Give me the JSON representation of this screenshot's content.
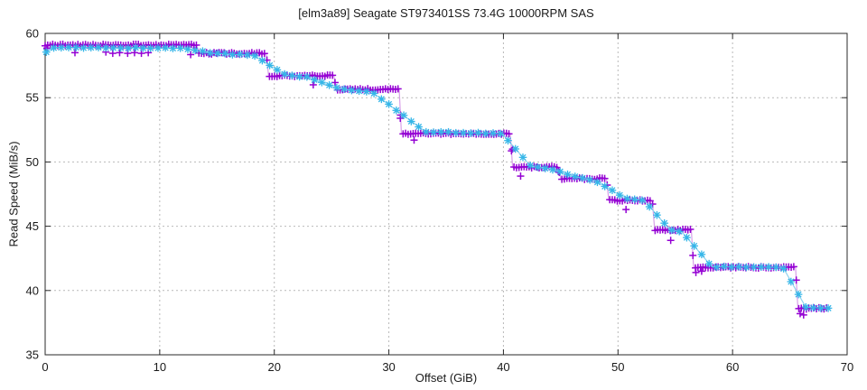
{
  "chart_data": {
    "type": "line",
    "title": "[elm3a89] Seagate ST973401SS 73.4G 10000RPM SAS",
    "xlabel": "Offset (GiB)",
    "ylabel": "Read Speed (MiB/s)",
    "xlim": [
      0,
      70
    ],
    "ylim": [
      35,
      60
    ],
    "x_ticks": [
      0,
      10,
      20,
      30,
      40,
      50,
      60,
      70
    ],
    "y_ticks": [
      35,
      40,
      45,
      50,
      55,
      60
    ],
    "grid": true,
    "legend": "none",
    "colors": {
      "grid": "#b9b9b9",
      "border": "#2a2a2a",
      "text": "#1a1a1a",
      "series1_marker": "#9400d3",
      "series1_line": "#d8a0e8",
      "series2_marker": "#35b6e8",
      "series2_line": "#8fd2ee"
    },
    "series": [
      {
        "name": "stepped-run-purple-plus",
        "marker": "plus",
        "marker_step_gib": 0.22,
        "breakpoints": [
          [
            0,
            59.1
          ],
          [
            13.2,
            59.1
          ],
          [
            13.4,
            58.45
          ],
          [
            19.3,
            58.45
          ],
          [
            19.5,
            56.7
          ],
          [
            25.2,
            56.7
          ],
          [
            25.4,
            55.65
          ],
          [
            30.9,
            55.65
          ],
          [
            31.1,
            52.2
          ],
          [
            40.6,
            52.2
          ],
          [
            40.8,
            49.6
          ],
          [
            44.8,
            49.6
          ],
          [
            45.0,
            48.7
          ],
          [
            49.0,
            48.7
          ],
          [
            49.2,
            47.0
          ],
          [
            53.0,
            47.0
          ],
          [
            53.2,
            44.7
          ],
          [
            56.4,
            44.7
          ],
          [
            56.6,
            41.8
          ],
          [
            65.5,
            41.8
          ],
          [
            65.7,
            38.6
          ],
          [
            68.4,
            38.6
          ]
        ],
        "outliers": [
          [
            0.15,
            58.85
          ],
          [
            2.6,
            58.5
          ],
          [
            5.3,
            58.55
          ],
          [
            5.9,
            58.45
          ],
          [
            6.5,
            58.5
          ],
          [
            7.2,
            58.45
          ],
          [
            7.8,
            58.5
          ],
          [
            8.4,
            58.45
          ],
          [
            9.0,
            58.5
          ],
          [
            12.7,
            58.35
          ],
          [
            23.4,
            56.0
          ],
          [
            31.0,
            53.4
          ],
          [
            32.2,
            51.7
          ],
          [
            40.8,
            51.0
          ],
          [
            41.5,
            48.9
          ],
          [
            44.8,
            49.25
          ],
          [
            50.7,
            46.3
          ],
          [
            54.6,
            43.9
          ],
          [
            56.8,
            41.4
          ],
          [
            57.3,
            41.5
          ],
          [
            65.9,
            38.2
          ],
          [
            66.2,
            38.1
          ]
        ]
      },
      {
        "name": "smoothed-run-cyan-asterisk",
        "marker": "asterisk",
        "marker_step_gib": 0.65,
        "breakpoints": [
          [
            0.1,
            58.55
          ],
          [
            0.8,
            58.9
          ],
          [
            12.2,
            58.85
          ],
          [
            14.6,
            58.45
          ],
          [
            18.2,
            58.3
          ],
          [
            21.0,
            56.75
          ],
          [
            22.8,
            56.6
          ],
          [
            25.6,
            55.7
          ],
          [
            28.5,
            55.45
          ],
          [
            33.2,
            52.35
          ],
          [
            39.9,
            52.2
          ],
          [
            42.4,
            49.65
          ],
          [
            44.0,
            49.5
          ],
          [
            46.3,
            48.85
          ],
          [
            48.0,
            48.55
          ],
          [
            50.0,
            47.5
          ],
          [
            51.0,
            47.1
          ],
          [
            52.3,
            47.0
          ],
          [
            54.5,
            44.75
          ],
          [
            55.6,
            44.55
          ],
          [
            58.2,
            41.85
          ],
          [
            64.4,
            41.8
          ],
          [
            66.4,
            38.7
          ],
          [
            68.6,
            38.6
          ]
        ],
        "outliers": []
      }
    ]
  }
}
